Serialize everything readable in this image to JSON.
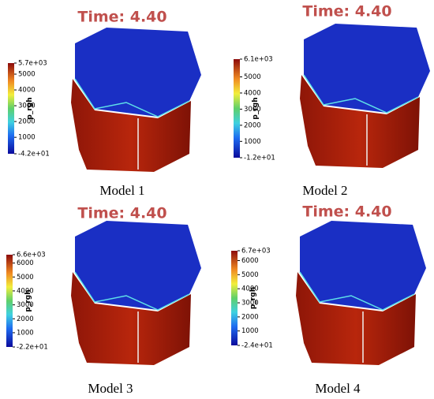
{
  "panels": [
    {
      "title": "Time: 4.40",
      "label": "Model 1",
      "colorbar": {
        "title": "p_rgh",
        "max": {
          "value": 5700,
          "label": "5.7e+03"
        },
        "min": {
          "value": -42,
          "label": "-4.2e+01"
        },
        "ticks": [
          1000,
          2000,
          3000,
          4000,
          5000
        ]
      }
    },
    {
      "title": "Time: 4.40",
      "label": "Model 2",
      "colorbar": {
        "title": "p_rgh",
        "max": {
          "value": 6100,
          "label": "6.1e+03"
        },
        "min": {
          "value": -12,
          "label": "-1.2e+01"
        },
        "ticks": [
          1000,
          2000,
          3000,
          4000,
          5000
        ]
      }
    },
    {
      "title": "Time: 4.40",
      "label": "Model 3",
      "colorbar": {
        "title": "p_rgh",
        "max": {
          "value": 6600,
          "label": "6.6e+03"
        },
        "min": {
          "value": -22,
          "label": "-2.2e+01"
        },
        "ticks": [
          1000,
          2000,
          3000,
          4000,
          5000,
          6000
        ]
      }
    },
    {
      "title": "Time: 4.40",
      "label": "Model 4",
      "colorbar": {
        "title": "p_rgh",
        "max": {
          "value": 6700,
          "label": "6.7e+03"
        },
        "min": {
          "value": -24,
          "label": "-2.4e+01"
        },
        "ticks": [
          1000,
          2000,
          3000,
          4000,
          5000,
          6000
        ]
      }
    }
  ]
}
